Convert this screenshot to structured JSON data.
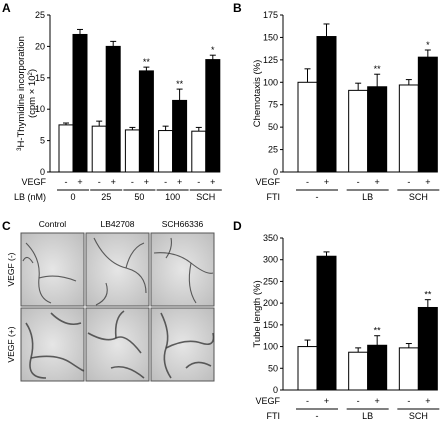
{
  "chart_data": [
    {
      "panel": "A",
      "type": "bar",
      "ylabel_parts": {
        "sup": "3",
        "main": "H-Thymidine incorporation",
        "unit_pre": "(cpm × 10",
        "unit_sup": "2",
        "unit_post": ")"
      },
      "ylim": [
        0,
        25
      ],
      "yticks": [
        "0",
        "5",
        "10",
        "15",
        "20",
        "25"
      ],
      "row1_label": "VEGF",
      "row2_label": "LB (nM)",
      "vegf_signs": [
        "-",
        "+"
      ],
      "groups": [
        "0",
        "25",
        "50",
        "100",
        "SCH"
      ],
      "series": [
        {
          "name": "-",
          "values": [
            7.5,
            7.3,
            6.7,
            6.6,
            6.5
          ],
          "errors": [
            0.3,
            0.8,
            0.4,
            0.7,
            0.6
          ]
        },
        {
          "name": "+",
          "values": [
            21.9,
            20.0,
            16.1,
            11.4,
            17.9
          ],
          "errors": [
            0.8,
            0.8,
            0.6,
            1.8,
            0.7
          ]
        }
      ],
      "annotations": [
        "",
        "",
        "**",
        "**",
        "*"
      ]
    },
    {
      "panel": "B",
      "type": "bar",
      "ylabel": "Chemotaxis (%)",
      "ylim": [
        0,
        175
      ],
      "yticks": [
        "0",
        "25",
        "50",
        "75",
        "100",
        "125",
        "150",
        "175"
      ],
      "row1_label": "VEGF",
      "row2_label": "FTI",
      "vegf_signs": [
        "-",
        "+"
      ],
      "groups": [
        "-",
        "LB",
        "SCH"
      ],
      "series": [
        {
          "name": "-",
          "values": [
            100,
            91,
            97
          ],
          "errors": [
            15,
            8,
            6
          ]
        },
        {
          "name": "+",
          "values": [
            151,
            95,
            128
          ],
          "errors": [
            14,
            14,
            8
          ]
        }
      ],
      "annotations": [
        "",
        "**",
        "*"
      ]
    },
    {
      "panel": "D",
      "type": "bar",
      "ylabel": "Tube length (%)",
      "ylim": [
        0,
        350
      ],
      "yticks": [
        "0",
        "50",
        "100",
        "150",
        "200",
        "250",
        "300",
        "350"
      ],
      "row1_label": "VEGF",
      "row2_label": "FTI",
      "vegf_signs": [
        "-",
        "+"
      ],
      "groups": [
        "-",
        "LB",
        "SCH"
      ],
      "series": [
        {
          "name": "-",
          "values": [
            100,
            87,
            97
          ],
          "errors": [
            15,
            10,
            10
          ]
        },
        {
          "name": "+",
          "values": [
            308,
            103,
            190
          ],
          "errors": [
            10,
            22,
            18
          ]
        }
      ],
      "annotations": [
        "",
        "**",
        "**"
      ]
    }
  ],
  "panel_c": {
    "letter": "C",
    "columns": [
      "Control",
      "LB42708",
      "SCH66336"
    ],
    "rows": [
      "VEGF (-)",
      "VEGF (+)"
    ]
  }
}
